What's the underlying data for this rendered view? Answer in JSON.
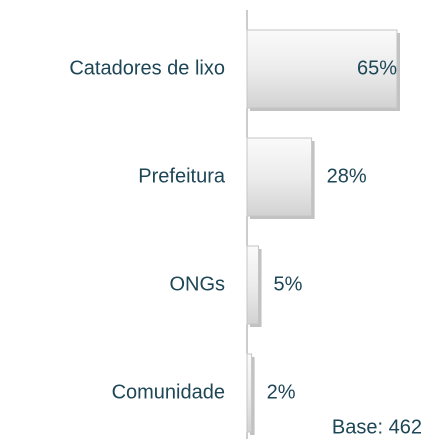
{
  "chart_data": {
    "type": "hbar",
    "categories": [
      "Catadores de lixo",
      "Prefeitura",
      "ONGs",
      "Comunidade"
    ],
    "values": [
      65,
      28,
      5,
      2
    ],
    "value_labels": [
      "65%",
      "28%",
      "5%",
      "2%"
    ],
    "color": "#e4e4e4",
    "annotation": "Base: 462"
  }
}
